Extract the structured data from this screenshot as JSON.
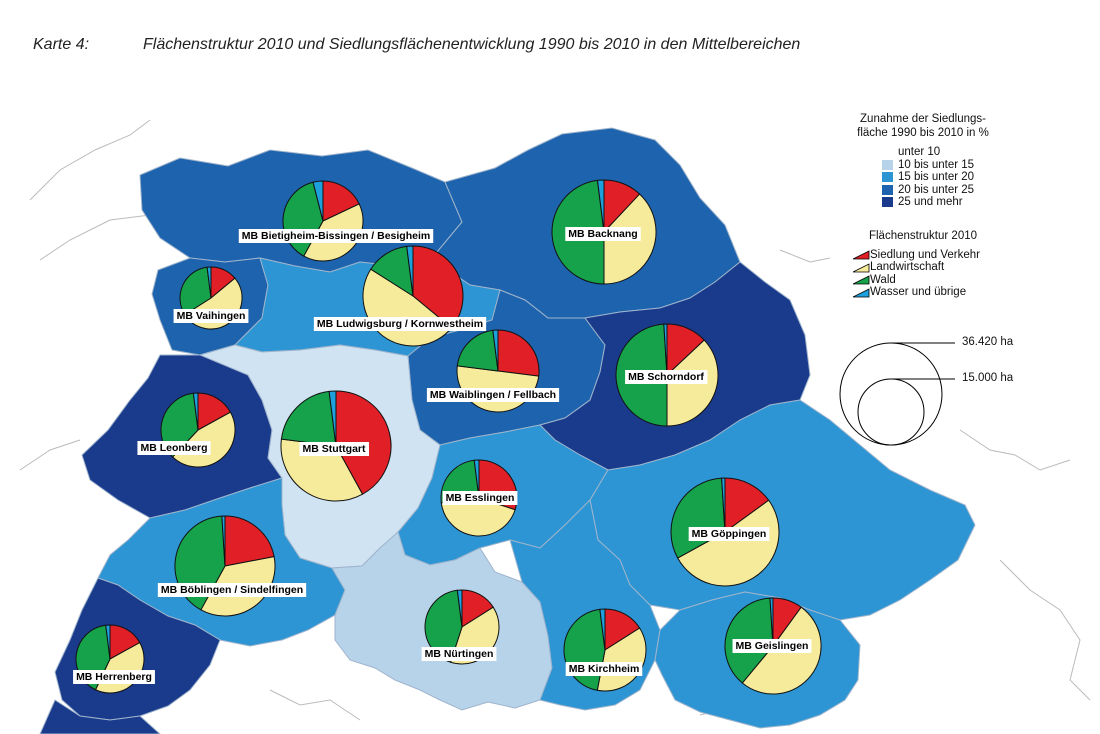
{
  "header": {
    "map_number": "Karte 4:",
    "title": "Flächenstruktur 2010 und Siedlungsflächenentwicklung 1990 bis 2010 in den Mittelbereichen"
  },
  "colors": {
    "class_1": "#cfe3f2",
    "class_2": "#b7d3ea",
    "class_3": "#2d95d3",
    "class_4": "#1e63ad",
    "class_5": "#1a3a8c",
    "siedlung": "#e01f26",
    "landwirtschaft": "#f6eb9b",
    "wald": "#16a24a",
    "wasser": "#1ea0dd",
    "boundary": "#b9b9b9"
  },
  "legend": {
    "growth_title_1": "Zunahme der Siedlungs-",
    "growth_title_2": "fläche 1990 bis 2010 in %",
    "growth_classes": [
      "unter 10",
      "10 bis unter 15",
      "15 bis unter 20",
      "20 bis unter 25",
      "25 und mehr"
    ],
    "structure_title": "Flächenstruktur 2010",
    "structure_classes": [
      "Siedlung und Verkehr",
      "Landwirtschaft",
      "Wald",
      "Wasser und übrige"
    ],
    "size_labels": [
      "36.420 ha",
      "15.000 ha"
    ]
  },
  "areas": [
    {
      "label": "MB Bietigheim-Bissingen / Besigheim",
      "growth_class": 4,
      "shares": [
        0.18,
        0.4,
        0.38,
        0.04
      ]
    },
    {
      "label": "MB Backnang",
      "growth_class": 4,
      "shares": [
        0.12,
        0.38,
        0.48,
        0.02
      ]
    },
    {
      "label": "MB Vaihingen",
      "growth_class": 4,
      "shares": [
        0.14,
        0.52,
        0.32,
        0.02
      ]
    },
    {
      "label": "MB Ludwigsburg / Kornwestheim",
      "growth_class": 3,
      "shares": [
        0.36,
        0.48,
        0.14,
        0.02
      ]
    },
    {
      "label": "MB Waiblingen / Fellbach",
      "growth_class": 4,
      "shares": [
        0.27,
        0.5,
        0.21,
        0.02
      ]
    },
    {
      "label": "MB Schorndorf",
      "growth_class": 5,
      "shares": [
        0.13,
        0.37,
        0.49,
        0.01
      ]
    },
    {
      "label": "MB Leonberg",
      "growth_class": 5,
      "shares": [
        0.17,
        0.45,
        0.36,
        0.02
      ]
    },
    {
      "label": "MB Stuttgart",
      "growth_class": 1,
      "shares": [
        0.42,
        0.35,
        0.21,
        0.02
      ]
    },
    {
      "label": "MB Esslingen",
      "growth_class": 3,
      "shares": [
        0.3,
        0.43,
        0.25,
        0.02
      ]
    },
    {
      "label": "MB Göppingen",
      "growth_class": 3,
      "shares": [
        0.15,
        0.52,
        0.32,
        0.01
      ]
    },
    {
      "label": "MB Böblingen / Sindelfingen",
      "growth_class": 3,
      "shares": [
        0.22,
        0.36,
        0.41,
        0.01
      ]
    },
    {
      "label": "MB Nürtingen",
      "growth_class": 2,
      "shares": [
        0.16,
        0.39,
        0.43,
        0.02
      ]
    },
    {
      "label": "MB Kirchheim",
      "growth_class": 3,
      "shares": [
        0.16,
        0.37,
        0.45,
        0.02
      ]
    },
    {
      "label": "MB Geislingen",
      "growth_class": 3,
      "shares": [
        0.1,
        0.51,
        0.38,
        0.01
      ]
    },
    {
      "label": "MB Herrenberg",
      "growth_class": 5,
      "shares": [
        0.17,
        0.4,
        0.41,
        0.02
      ]
    }
  ]
}
